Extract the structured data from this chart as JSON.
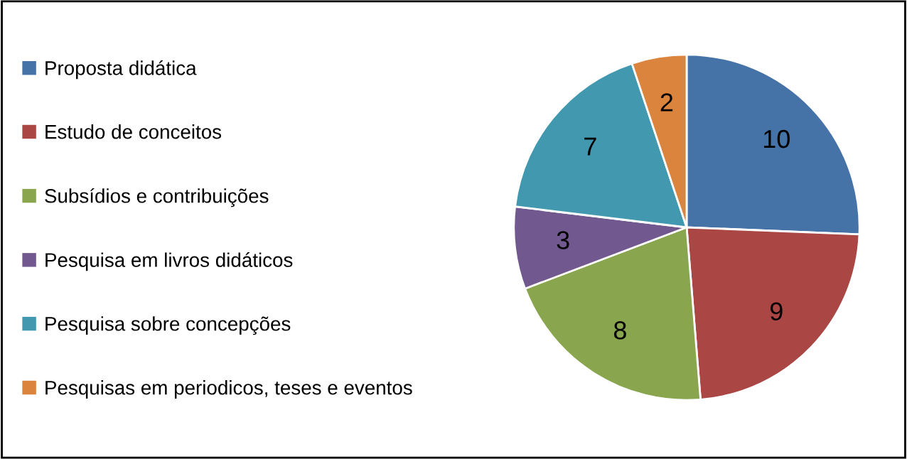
{
  "chart_data": {
    "type": "pie",
    "categories": [
      "Proposta didática",
      "Estudo de conceitos",
      "Subsídios e contribuições",
      "Pesquisa em livros didáticos",
      "Pesquisa sobre concepções",
      "Pesquisas em periodicos, teses e eventos"
    ],
    "values": [
      10,
      9,
      8,
      3,
      7,
      2
    ],
    "colors": [
      "#4572a7",
      "#aa4643",
      "#89a54e",
      "#71588f",
      "#4198af",
      "#db843d"
    ],
    "data_labels": true,
    "legend": "left"
  }
}
